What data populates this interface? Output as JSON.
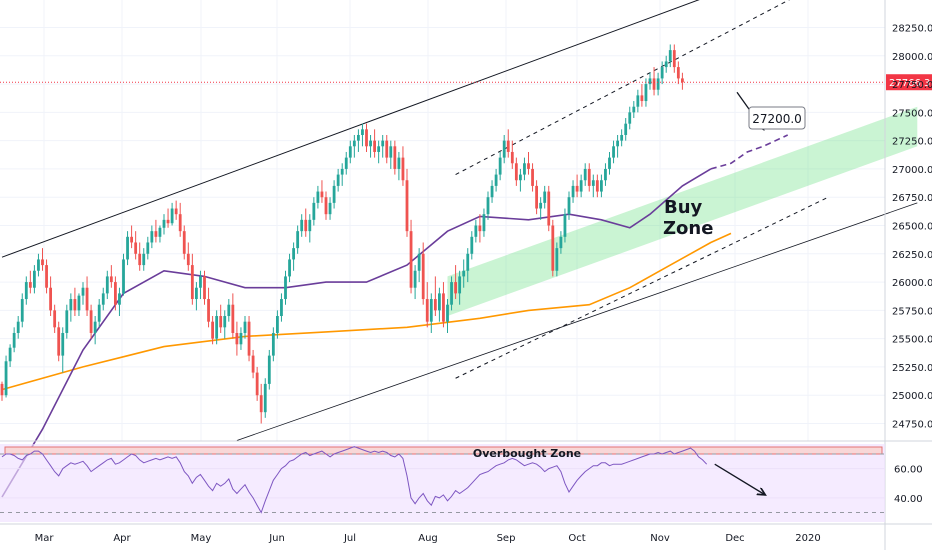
{
  "chart_data": {
    "type": "candlestick",
    "symbol_note": "",
    "price_axis": {
      "ticks": [
        24750,
        25000,
        25250,
        25500,
        25750,
        26000,
        26250,
        26500,
        26750,
        27000,
        27250,
        27500,
        27750,
        28000,
        28250
      ],
      "tick_labels": [
        "24750.0",
        "25000.0",
        "25250.0",
        "25500.0",
        "25750.0",
        "26000.0",
        "26250.0",
        "26500.0",
        "26750.0",
        "27000.0",
        "27250.0",
        "27500.0",
        "27750.0",
        "28000.0",
        "28250.0"
      ],
      "range": [
        24600,
        28400
      ]
    },
    "time_axis": {
      "labels": [
        "Mar",
        "Apr",
        "May",
        "Jun",
        "Jul",
        "Aug",
        "Sep",
        "Oct",
        "Nov",
        "Dec",
        "2020"
      ],
      "label_positions": [
        44,
        122,
        201,
        277,
        350,
        428,
        506,
        577,
        660,
        735,
        808
      ],
      "bar_index_range": [
        0,
        180
      ]
    },
    "current_price": {
      "value": 27766.3,
      "label": "27766.3",
      "color": "#f23645"
    },
    "target": {
      "value": 27200.0,
      "label": "27200.0"
    },
    "annotations": {
      "buy_zone_line1": "Buy",
      "buy_zone_line2": "Zone",
      "overbought_label": "Overbought Zone"
    },
    "ohlc": [
      [
        25100,
        25120,
        24950,
        25000
      ],
      [
        25000,
        25350,
        24980,
        25300
      ],
      [
        25300,
        25450,
        25250,
        25420
      ],
      [
        25420,
        25600,
        25380,
        25550
      ],
      [
        25550,
        25700,
        25500,
        25650
      ],
      [
        25650,
        25900,
        25600,
        25850
      ],
      [
        25850,
        26050,
        25800,
        26000
      ],
      [
        26000,
        26100,
        25900,
        25950
      ],
      [
        25950,
        26150,
        25900,
        26100
      ],
      [
        26100,
        26250,
        26050,
        26200
      ],
      [
        26200,
        26300,
        26100,
        26150
      ],
      [
        26150,
        26200,
        25900,
        25950
      ],
      [
        25950,
        26050,
        25700,
        25750
      ],
      [
        25750,
        25800,
        25550,
        25600
      ],
      [
        25600,
        25650,
        25300,
        25350
      ],
      [
        25350,
        25600,
        25200,
        25550
      ],
      [
        25550,
        25800,
        25500,
        25750
      ],
      [
        25750,
        25900,
        25650,
        25850
      ],
      [
        25850,
        25950,
        25700,
        25750
      ],
      [
        25750,
        25900,
        25700,
        25880
      ],
      [
        25880,
        26000,
        25800,
        25950
      ],
      [
        25950,
        26050,
        25700,
        25750
      ],
      [
        25750,
        25800,
        25500,
        25550
      ],
      [
        25550,
        25700,
        25450,
        25650
      ],
      [
        25650,
        25850,
        25600,
        25800
      ],
      [
        25800,
        25950,
        25750,
        25900
      ],
      [
        25900,
        26100,
        25850,
        26050
      ],
      [
        26050,
        26150,
        25950,
        26000
      ],
      [
        26000,
        26050,
        25750,
        25800
      ],
      [
        25800,
        25950,
        25700,
        25900
      ],
      [
        25900,
        26250,
        25880,
        26200
      ],
      [
        26200,
        26450,
        26150,
        26400
      ],
      [
        26400,
        26500,
        26300,
        26350
      ],
      [
        26350,
        26450,
        26200,
        26250
      ],
      [
        26250,
        26350,
        26100,
        26150
      ],
      [
        26150,
        26300,
        26100,
        26250
      ],
      [
        26250,
        26400,
        26200,
        26350
      ],
      [
        26350,
        26500,
        26300,
        26450
      ],
      [
        26450,
        26550,
        26350,
        26400
      ],
      [
        26400,
        26500,
        26350,
        26480
      ],
      [
        26480,
        26600,
        26420,
        26550
      ],
      [
        26550,
        26650,
        26480,
        26520
      ],
      [
        26520,
        26700,
        26500,
        26650
      ],
      [
        26650,
        26720,
        26550,
        26600
      ],
      [
        26600,
        26700,
        26400,
        26450
      ],
      [
        26450,
        26500,
        26200,
        26250
      ],
      [
        26250,
        26350,
        26100,
        26150
      ],
      [
        26150,
        26250,
        25800,
        25850
      ],
      [
        25850,
        26000,
        25750,
        25950
      ],
      [
        25950,
        26100,
        25850,
        26050
      ],
      [
        26050,
        26100,
        25800,
        25850
      ],
      [
        25850,
        25950,
        25600,
        25650
      ],
      [
        25650,
        25700,
        25450,
        25500
      ],
      [
        25500,
        25750,
        25450,
        25700
      ],
      [
        25700,
        25800,
        25550,
        25600
      ],
      [
        25600,
        25750,
        25500,
        25700
      ],
      [
        25700,
        25850,
        25650,
        25800
      ],
      [
        25800,
        25900,
        25500,
        25550
      ],
      [
        25550,
        25650,
        25350,
        25450
      ],
      [
        25450,
        25600,
        25400,
        25550
      ],
      [
        25550,
        25700,
        25500,
        25650
      ],
      [
        25650,
        25700,
        25300,
        25350
      ],
      [
        25350,
        25400,
        25150,
        25200
      ],
      [
        25200,
        25250,
        24950,
        25000
      ],
      [
        25000,
        25100,
        24750,
        24850
      ],
      [
        24850,
        25150,
        24800,
        25100
      ],
      [
        25100,
        25400,
        25050,
        25350
      ],
      [
        25350,
        25600,
        25300,
        25550
      ],
      [
        25550,
        25750,
        25500,
        25700
      ],
      [
        25700,
        25900,
        25650,
        25850
      ],
      [
        25850,
        26100,
        25800,
        26050
      ],
      [
        26050,
        26250,
        26000,
        26200
      ],
      [
        26200,
        26350,
        26100,
        26300
      ],
      [
        26300,
        26500,
        26250,
        26450
      ],
      [
        26450,
        26600,
        26400,
        26550
      ],
      [
        26550,
        26650,
        26400,
        26450
      ],
      [
        26450,
        26600,
        26350,
        26550
      ],
      [
        26550,
        26750,
        26500,
        26700
      ],
      [
        26700,
        26850,
        26650,
        26800
      ],
      [
        26800,
        26900,
        26700,
        26750
      ],
      [
        26750,
        26800,
        26550,
        26600
      ],
      [
        26600,
        26750,
        26550,
        26700
      ],
      [
        26700,
        26900,
        26650,
        26850
      ],
      [
        26850,
        27000,
        26800,
        26950
      ],
      [
        26950,
        27050,
        26850,
        27000
      ],
      [
        27000,
        27150,
        26950,
        27100
      ],
      [
        27100,
        27250,
        27050,
        27200
      ],
      [
        27200,
        27300,
        27100,
        27250
      ],
      [
        27250,
        27350,
        27150,
        27300
      ],
      [
        27300,
        27400,
        27200,
        27350
      ],
      [
        27350,
        27400,
        27150,
        27200
      ],
      [
        27200,
        27300,
        27100,
        27250
      ],
      [
        27250,
        27350,
        27100,
        27150
      ],
      [
        27150,
        27250,
        27050,
        27200
      ],
      [
        27200,
        27300,
        27100,
        27250
      ],
      [
        27250,
        27300,
        27050,
        27100
      ],
      [
        27100,
        27250,
        27000,
        27200
      ],
      [
        27200,
        27250,
        26950,
        27000
      ],
      [
        27000,
        27150,
        26900,
        27100
      ],
      [
        27100,
        27200,
        26850,
        26900
      ],
      [
        26900,
        27000,
        26400,
        26450
      ],
      [
        26450,
        26550,
        25900,
        25950
      ],
      [
        25950,
        26150,
        25850,
        26100
      ],
      [
        26100,
        26300,
        26000,
        26250
      ],
      [
        26250,
        26350,
        25800,
        25850
      ],
      [
        25850,
        26000,
        25600,
        25650
      ],
      [
        25650,
        25900,
        25550,
        25850
      ],
      [
        25850,
        26050,
        25700,
        25750
      ],
      [
        25750,
        25950,
        25650,
        25900
      ],
      [
        25900,
        26000,
        25600,
        25650
      ],
      [
        25650,
        25850,
        25550,
        25800
      ],
      [
        25800,
        26050,
        25750,
        26000
      ],
      [
        26000,
        26150,
        25850,
        25900
      ],
      [
        25900,
        26100,
        25800,
        26050
      ],
      [
        26050,
        26200,
        25950,
        26100
      ],
      [
        26100,
        26300,
        26000,
        26250
      ],
      [
        26250,
        26450,
        26200,
        26400
      ],
      [
        26400,
        26550,
        26350,
        26500
      ],
      [
        26500,
        26600,
        26350,
        26450
      ],
      [
        26450,
        26650,
        26400,
        26600
      ],
      [
        26600,
        26800,
        26550,
        26750
      ],
      [
        26750,
        26900,
        26700,
        26850
      ],
      [
        26850,
        27000,
        26800,
        26950
      ],
      [
        26950,
        27150,
        26900,
        27100
      ],
      [
        27100,
        27300,
        27050,
        27250
      ],
      [
        27250,
        27350,
        27100,
        27150
      ],
      [
        27150,
        27250,
        27000,
        27050
      ],
      [
        27050,
        27100,
        26850,
        26900
      ],
      [
        26900,
        27000,
        26800,
        26950
      ],
      [
        26950,
        27100,
        26900,
        27050
      ],
      [
        27050,
        27150,
        26950,
        27000
      ],
      [
        27000,
        27050,
        26800,
        26850
      ],
      [
        26850,
        26900,
        26600,
        26650
      ],
      [
        26650,
        26750,
        26550,
        26700
      ],
      [
        26700,
        26850,
        26650,
        26800
      ],
      [
        26800,
        26850,
        26450,
        26500
      ],
      [
        26500,
        26550,
        26050,
        26100
      ],
      [
        26100,
        26350,
        26050,
        26300
      ],
      [
        26300,
        26450,
        26250,
        26400
      ],
      [
        26400,
        26650,
        26350,
        26600
      ],
      [
        26600,
        26800,
        26550,
        26750
      ],
      [
        26750,
        26900,
        26700,
        26850
      ],
      [
        26850,
        26950,
        26750,
        26800
      ],
      [
        26800,
        26950,
        26750,
        26900
      ],
      [
        26900,
        27050,
        26850,
        27000
      ],
      [
        27000,
        27050,
        26800,
        26850
      ],
      [
        26850,
        26950,
        26750,
        26900
      ],
      [
        26900,
        26950,
        26750,
        26800
      ],
      [
        26800,
        26950,
        26750,
        26900
      ],
      [
        26900,
        27050,
        26850,
        27000
      ],
      [
        27000,
        27150,
        26950,
        27100
      ],
      [
        27100,
        27250,
        27050,
        27200
      ],
      [
        27200,
        27300,
        27100,
        27250
      ],
      [
        27250,
        27350,
        27200,
        27300
      ],
      [
        27300,
        27450,
        27250,
        27400
      ],
      [
        27400,
        27550,
        27350,
        27500
      ],
      [
        27500,
        27600,
        27450,
        27550
      ],
      [
        27550,
        27700,
        27500,
        27650
      ],
      [
        27650,
        27750,
        27550,
        27600
      ],
      [
        27600,
        27800,
        27550,
        27750
      ],
      [
        27750,
        27850,
        27700,
        27800
      ],
      [
        27800,
        27900,
        27650,
        27700
      ],
      [
        27700,
        27850,
        27650,
        27800
      ],
      [
        27800,
        27950,
        27750,
        27900
      ],
      [
        27900,
        28000,
        27850,
        27950
      ],
      [
        27950,
        28100,
        27900,
        28050
      ],
      [
        28050,
        28100,
        27850,
        27900
      ],
      [
        27900,
        27950,
        27750,
        27800
      ],
      [
        27800,
        27850,
        27700,
        27766
      ]
    ],
    "ma50": [
      [
        0,
        24100
      ],
      [
        10,
        24700
      ],
      [
        20,
        25400
      ],
      [
        30,
        25900
      ],
      [
        40,
        26100
      ],
      [
        50,
        26050
      ],
      [
        60,
        25950
      ],
      [
        70,
        25950
      ],
      [
        80,
        26000
      ],
      [
        90,
        26000
      ],
      [
        100,
        26150
      ],
      [
        110,
        26450
      ],
      [
        118,
        26580
      ],
      [
        130,
        26550
      ],
      [
        140,
        26600
      ],
      [
        148,
        26550
      ],
      [
        155,
        26480
      ],
      [
        160,
        26600
      ],
      [
        168,
        26850
      ],
      [
        175,
        27000
      ],
      [
        180,
        27050
      ],
      [
        184,
        27150
      ],
      [
        188,
        27200
      ],
      [
        194,
        27300
      ]
    ],
    "ma200": [
      [
        0,
        25050
      ],
      [
        20,
        25250
      ],
      [
        40,
        25430
      ],
      [
        60,
        25520
      ],
      [
        80,
        25560
      ],
      [
        100,
        25600
      ],
      [
        118,
        25680
      ],
      [
        130,
        25750
      ],
      [
        145,
        25800
      ],
      [
        155,
        25950
      ],
      [
        165,
        26150
      ],
      [
        175,
        26350
      ],
      [
        180,
        26430
      ]
    ],
    "channel_upper_solid": [
      [
        0,
        26220
      ],
      [
        180,
        28600
      ]
    ],
    "channel_lower_solid": [
      [
        58,
        24600
      ],
      [
        226,
        26700
      ]
    ],
    "channel_upper_dashed": [
      [
        112,
        26950
      ],
      [
        200,
        28600
      ]
    ],
    "channel_lower_dashed": [
      [
        112,
        25150
      ],
      [
        204,
        26750
      ]
    ],
    "buy_zone": {
      "lower": [
        [
          110,
          25700
        ],
        [
          226,
          27200
        ]
      ],
      "upper": [
        [
          110,
          26050
        ],
        [
          226,
          27550
        ]
      ]
    },
    "projection": [
      [
        180,
        27766
      ],
      [
        189,
        27350
      ]
    ],
    "projection_dashed": [
      [
        180,
        27080
      ],
      [
        194,
        27300
      ],
      [
        210,
        27480
      ]
    ],
    "rsi": {
      "range": [
        25,
        80
      ],
      "ticks": [
        40,
        60
      ],
      "tick_labels": [
        "40.00",
        "60.00"
      ],
      "overbought": 70,
      "lower_band": 30,
      "values": [
        68,
        70,
        70,
        69,
        67,
        66,
        69,
        70,
        72,
        72,
        70,
        66,
        62,
        58,
        55,
        60,
        62,
        64,
        63,
        64,
        65,
        62,
        58,
        60,
        62,
        64,
        66,
        67,
        63,
        64,
        66,
        68,
        70,
        69,
        66,
        64,
        65,
        66,
        67,
        66,
        67,
        68,
        67,
        68,
        64,
        58,
        55,
        50,
        54,
        56,
        52,
        48,
        45,
        50,
        48,
        50,
        53,
        46,
        43,
        46,
        49,
        44,
        40,
        35,
        30,
        38,
        45,
        52,
        56,
        60,
        62,
        65,
        66,
        68,
        70,
        71,
        69,
        70,
        71,
        72,
        70,
        68,
        70,
        71,
        72,
        73,
        74,
        75,
        74,
        73,
        72,
        71,
        72,
        71,
        72,
        71,
        69,
        68,
        70,
        67,
        55,
        40,
        36,
        40,
        43,
        38,
        35,
        41,
        40,
        42,
        38,
        41,
        45,
        43,
        45,
        47,
        50,
        53,
        56,
        57,
        58,
        60,
        62,
        63,
        64,
        66,
        67,
        66,
        64,
        62,
        63,
        64,
        63,
        61,
        58,
        60,
        61,
        62,
        58,
        50,
        44,
        48,
        52,
        55,
        58,
        60,
        62,
        62,
        64,
        64,
        62,
        63,
        63,
        63,
        64,
        65,
        66,
        67,
        68,
        69,
        70,
        70,
        71,
        70,
        71,
        72,
        70,
        71,
        72,
        73,
        74,
        72,
        68,
        66,
        63
      ],
      "projection": [
        [
          175,
          63
        ],
        [
          186,
          42
        ]
      ]
    }
  }
}
